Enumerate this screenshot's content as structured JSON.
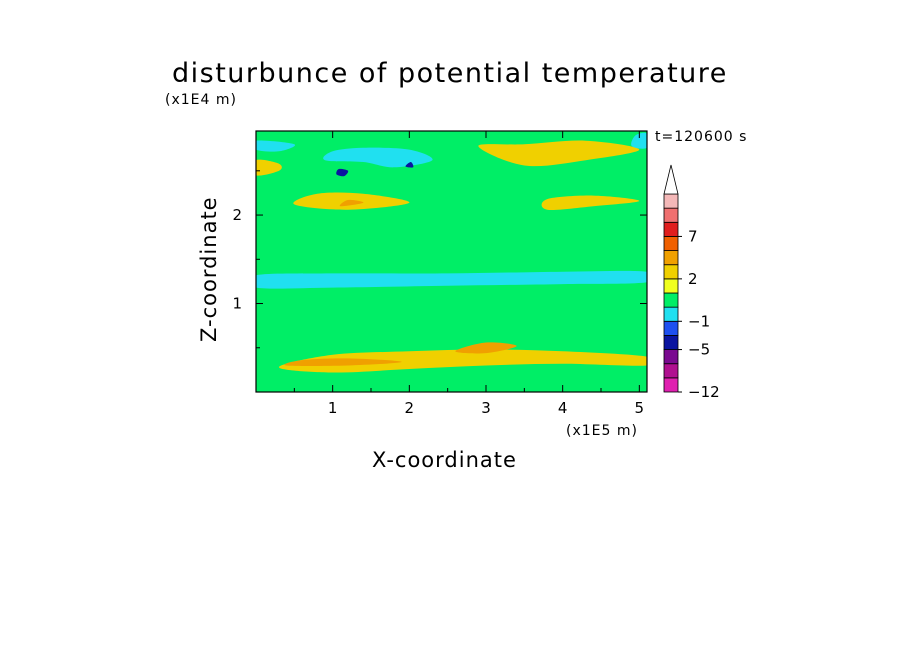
{
  "chart_data": {
    "type": "heatmap",
    "title": "disturbunce of potential temperature",
    "xlabel": "X-coordinate",
    "ylabel": "Z-coordinate",
    "x_unit": "(x1E5 m)",
    "y_unit": "(x1E4 m)",
    "time_label": "t=120600 s",
    "xlim": [
      0,
      5.1
    ],
    "ylim": [
      0,
      2.95
    ],
    "x_ticks": [
      1,
      2,
      3,
      4,
      5
    ],
    "x_tick_labels": [
      "1",
      "2",
      "3",
      "4",
      "5"
    ],
    "y_ticks": [
      1,
      2
    ],
    "y_tick_labels": [
      "1",
      "2"
    ],
    "grid": false,
    "colorbar": {
      "placement": "right",
      "extend": "max",
      "levels": [
        -12,
        -10,
        -8,
        -5,
        -3,
        -1,
        0,
        1,
        2,
        3,
        5,
        7,
        9,
        11
      ],
      "colors": [
        "#e020b0",
        "#b01090",
        "#7a0a90",
        "#0a14a0",
        "#1e50f0",
        "#20e0f0",
        "#00ee66",
        "#f0ff1e",
        "#f0d000",
        "#f0a000",
        "#f06000",
        "#e01e1e",
        "#f07070",
        "#f4b8b8"
      ],
      "extend_color": "#ffffff",
      "tick_labels": [
        {
          "value": 7,
          "label": "7"
        },
        {
          "value": 2,
          "label": "2"
        },
        {
          "value": -1,
          "label": "−1"
        },
        {
          "value": -5,
          "label": "−5"
        },
        {
          "value": -12,
          "label": "−12"
        }
      ]
    },
    "background_color": "#00ee66",
    "regions": [
      {
        "value": 0.5,
        "points": [
          [
            0,
            0.05
          ],
          [
            1.1,
            0.02
          ],
          [
            2.6,
            0.05
          ],
          [
            4.0,
            0.07
          ],
          [
            5.1,
            0.05
          ],
          [
            5.1,
            0.5
          ],
          [
            4.0,
            0.58
          ],
          [
            2.6,
            0.62
          ],
          [
            1.2,
            0.58
          ],
          [
            0.5,
            0.42
          ],
          [
            0,
            0.35
          ]
        ]
      },
      {
        "value": 0.5,
        "points": [
          [
            0,
            0.72
          ],
          [
            1.0,
            0.76
          ],
          [
            2.5,
            0.84
          ],
          [
            4.0,
            0.88
          ],
          [
            5.1,
            0.85
          ],
          [
            5.1,
            1.02
          ],
          [
            4.0,
            1.04
          ],
          [
            2.5,
            0.98
          ],
          [
            1.0,
            0.88
          ],
          [
            0,
            0.8
          ]
        ]
      },
      {
        "value": 0.5,
        "points": [
          [
            0,
            1.38
          ],
          [
            1.0,
            1.36
          ],
          [
            2.5,
            1.38
          ],
          [
            4.0,
            1.4
          ],
          [
            5.1,
            1.42
          ],
          [
            5.1,
            1.6
          ],
          [
            4.0,
            1.62
          ],
          [
            2.5,
            1.6
          ],
          [
            1.0,
            1.58
          ],
          [
            0,
            1.56
          ]
        ]
      },
      {
        "value": 0.5,
        "points": [
          [
            0,
            1.83
          ],
          [
            0.6,
            1.88
          ],
          [
            1.3,
            1.97
          ],
          [
            2.2,
            2.0
          ],
          [
            2.6,
            1.86
          ],
          [
            3.4,
            1.8
          ],
          [
            4.2,
            1.88
          ],
          [
            5.1,
            2.0
          ],
          [
            5.1,
            2.26
          ],
          [
            4.5,
            2.18
          ],
          [
            3.8,
            2.12
          ],
          [
            3.0,
            2.2
          ],
          [
            2.2,
            2.34
          ],
          [
            1.4,
            2.42
          ],
          [
            0.7,
            2.34
          ],
          [
            0,
            2.22
          ]
        ]
      },
      {
        "value": 0.5,
        "points": [
          [
            0,
            2.6
          ],
          [
            0.5,
            2.58
          ],
          [
            1.0,
            2.52
          ],
          [
            1.5,
            2.58
          ],
          [
            2.0,
            2.48
          ],
          [
            2.5,
            2.56
          ],
          [
            3.0,
            2.72
          ],
          [
            3.6,
            2.74
          ],
          [
            4.2,
            2.7
          ],
          [
            5.1,
            2.72
          ],
          [
            5.1,
            2.62
          ],
          [
            4.5,
            2.52
          ],
          [
            3.8,
            2.42
          ],
          [
            3.0,
            2.36
          ],
          [
            2.2,
            2.44
          ],
          [
            1.5,
            2.48
          ],
          [
            0.8,
            2.42
          ],
          [
            0,
            2.44
          ]
        ]
      },
      {
        "value": 2.5,
        "points": [
          [
            0.3,
            0.28
          ],
          [
            1.0,
            0.42
          ],
          [
            2.0,
            0.46
          ],
          [
            3.0,
            0.48
          ],
          [
            4.0,
            0.46
          ],
          [
            5.1,
            0.4
          ],
          [
            5.1,
            0.3
          ],
          [
            4.0,
            0.32
          ],
          [
            3.0,
            0.3
          ],
          [
            2.0,
            0.26
          ],
          [
            1.0,
            0.22
          ]
        ]
      },
      {
        "value": 2.5,
        "points": [
          [
            0.5,
            2.12
          ],
          [
            1.2,
            2.06
          ],
          [
            2.0,
            2.14
          ],
          [
            1.4,
            2.24
          ],
          [
            0.8,
            2.24
          ]
        ]
      },
      {
        "value": 2.5,
        "points": [
          [
            2.9,
            2.78
          ],
          [
            3.5,
            2.56
          ],
          [
            4.3,
            2.62
          ],
          [
            5.0,
            2.74
          ],
          [
            4.3,
            2.84
          ],
          [
            3.5,
            2.8
          ]
        ]
      },
      {
        "value": 2.5,
        "points": [
          [
            3.8,
            2.06
          ],
          [
            4.4,
            2.1
          ],
          [
            5.0,
            2.16
          ],
          [
            4.4,
            2.22
          ],
          [
            3.8,
            2.18
          ]
        ]
      },
      {
        "value": 2.5,
        "points": [
          [
            0,
            2.45
          ],
          [
            0.3,
            2.5
          ],
          [
            0.3,
            2.58
          ],
          [
            0,
            2.62
          ]
        ]
      },
      {
        "value": 4.0,
        "points": [
          [
            0.4,
            0.3
          ],
          [
            1.2,
            0.3
          ],
          [
            1.9,
            0.34
          ],
          [
            1.2,
            0.38
          ],
          [
            0.6,
            0.36
          ]
        ]
      },
      {
        "value": 4.0,
        "points": [
          [
            2.6,
            0.46
          ],
          [
            3.0,
            0.56
          ],
          [
            3.4,
            0.52
          ],
          [
            3.0,
            0.44
          ]
        ]
      },
      {
        "value": 4.0,
        "points": [
          [
            1.1,
            2.1
          ],
          [
            1.4,
            2.14
          ],
          [
            1.2,
            2.17
          ]
        ]
      },
      {
        "value": 0.5,
        "points": [
          [
            0,
            0.18
          ],
          [
            1.2,
            0.12
          ],
          [
            2.6,
            0.15
          ],
          [
            4.0,
            0.18
          ],
          [
            5.1,
            0.15
          ],
          [
            5.1,
            0.08
          ],
          [
            4.0,
            0.11
          ],
          [
            2.6,
            0.09
          ],
          [
            1.2,
            0.07
          ],
          [
            0,
            0.1
          ]
        ]
      },
      {
        "value": -0.5,
        "points": [
          [
            0,
            1.18
          ],
          [
            1.0,
            1.18
          ],
          [
            2.5,
            1.2
          ],
          [
            4.0,
            1.22
          ],
          [
            5.1,
            1.24
          ],
          [
            5.1,
            1.36
          ],
          [
            4.0,
            1.36
          ],
          [
            2.5,
            1.34
          ],
          [
            1.0,
            1.34
          ],
          [
            0,
            1.32
          ]
        ]
      },
      {
        "value": -0.5,
        "points": [
          [
            0.9,
            2.62
          ],
          [
            1.4,
            2.6
          ],
          [
            1.8,
            2.54
          ],
          [
            2.3,
            2.62
          ],
          [
            2.0,
            2.74
          ],
          [
            1.4,
            2.76
          ],
          [
            1.0,
            2.72
          ]
        ]
      },
      {
        "value": -0.5,
        "points": [
          [
            0,
            2.74
          ],
          [
            0.3,
            2.72
          ],
          [
            0.5,
            2.8
          ],
          [
            0,
            2.84
          ]
        ]
      },
      {
        "value": -0.5,
        "points": [
          [
            4.9,
            2.78
          ],
          [
            5.1,
            2.76
          ],
          [
            5.1,
            2.92
          ],
          [
            4.95,
            2.9
          ]
        ]
      },
      {
        "value": -4.0,
        "points": [
          [
            1.05,
            2.46
          ],
          [
            1.15,
            2.44
          ],
          [
            1.2,
            2.5
          ],
          [
            1.08,
            2.52
          ]
        ]
      },
      {
        "value": -4.0,
        "points": [
          [
            1.95,
            2.55
          ],
          [
            2.05,
            2.54
          ],
          [
            2.02,
            2.6
          ]
        ]
      }
    ]
  }
}
